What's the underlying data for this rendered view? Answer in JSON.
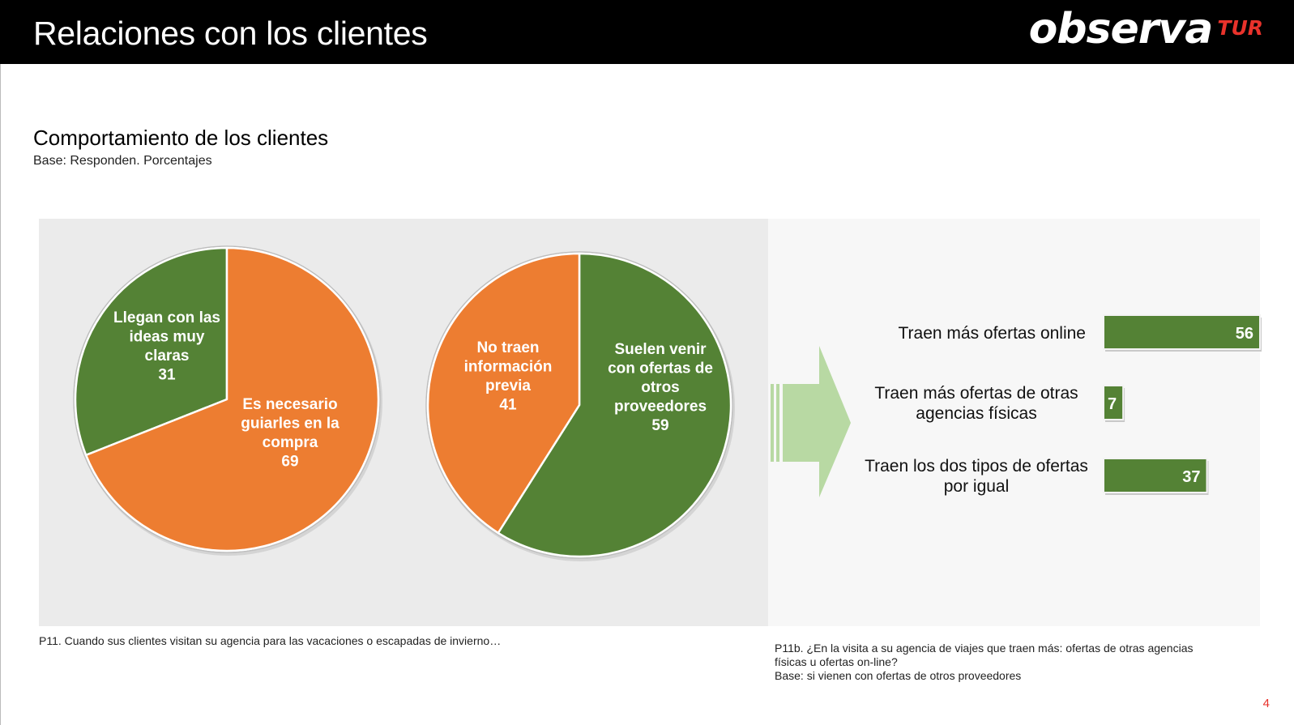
{
  "header": {
    "title": "Relaciones con los clientes",
    "logo_main": "observa",
    "logo_sub": "TUR"
  },
  "section": {
    "title": "Comportamiento de los clientes",
    "subtitle": "Base: Responden.  Porcentajes"
  },
  "colors": {
    "green": "#548235",
    "orange": "#ed7d31",
    "arrow": "#b8d9a3"
  },
  "chart_data": [
    {
      "type": "pie",
      "slices": [
        {
          "label": [
            "Llegan con las",
            "ideas muy",
            "claras"
          ],
          "value": 31,
          "color": "#548235"
        },
        {
          "label": [
            "Es necesario",
            "guiarles en la",
            "compra"
          ],
          "value": 69,
          "color": "#ed7d31"
        }
      ]
    },
    {
      "type": "pie",
      "slices": [
        {
          "label": [
            "Suelen venir",
            "con ofertas de",
            "otros",
            "proveedores"
          ],
          "value": 59,
          "color": "#548235"
        },
        {
          "label": [
            "No traen",
            "información",
            "previa"
          ],
          "value": 41,
          "color": "#ed7d31"
        }
      ]
    },
    {
      "type": "bar",
      "orientation": "horizontal",
      "categories": [
        [
          "Traen más ofertas online"
        ],
        [
          "Traen más ofertas de otras",
          "agencias físicas"
        ],
        [
          "Traen los dos tipos de ofertas",
          "por igual"
        ]
      ],
      "values": [
        56,
        7,
        37
      ],
      "color": "#548235",
      "xlim": [
        0,
        56
      ]
    }
  ],
  "notes": {
    "left": "P11. Cuando sus clientes visitan su agencia para las vacaciones o escapadas de invierno…",
    "right_lines": [
      "P11b. ¿En la visita a su agencia de viajes que traen más: ofertas de otras agencias",
      "físicas u ofertas on-line?",
      "Base: si vienen con ofertas de otros proveedores"
    ]
  },
  "page_number": "4"
}
